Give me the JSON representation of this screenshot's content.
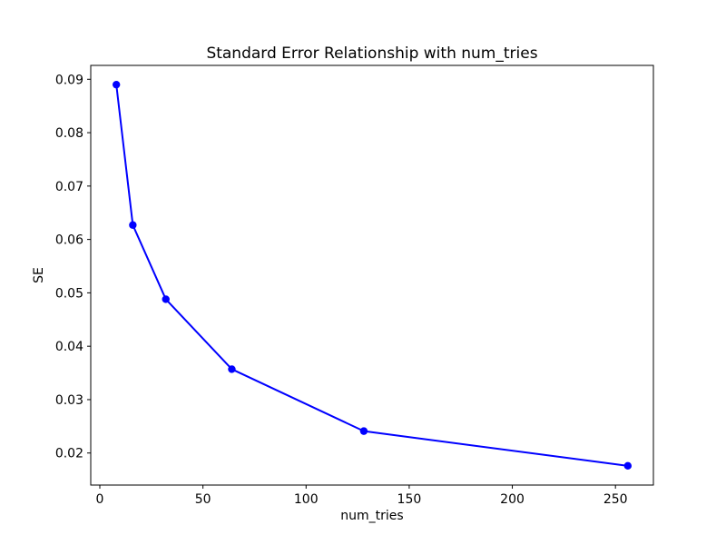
{
  "figure": {
    "background_color": "#ffffff",
    "text_color": "#000000"
  },
  "chart_data": {
    "type": "line",
    "title": "Standard Error Relationship with num_tries",
    "xlabel": "num_tries",
    "ylabel": "SE",
    "series": [
      {
        "x": [
          8,
          16,
          32,
          64,
          128,
          256
        ],
        "y": [
          0.089,
          0.0627,
          0.0488,
          0.0357,
          0.0241,
          0.0176
        ],
        "color": "#0000ff",
        "marker": "circle"
      }
    ],
    "x_ticks": [
      0,
      50,
      100,
      150,
      200,
      250
    ],
    "x_tick_labels": [
      "0",
      "50",
      "100",
      "150",
      "200",
      "250"
    ],
    "y_ticks": [
      0.02,
      0.03,
      0.04,
      0.05,
      0.06,
      0.07,
      0.08,
      0.09
    ],
    "y_tick_labels": [
      "0.02",
      "0.03",
      "0.04",
      "0.05",
      "0.06",
      "0.07",
      "0.08",
      "0.09"
    ],
    "xlim": [
      -4.4,
      268.4
    ],
    "ylim": [
      0.014,
      0.0926
    ],
    "grid": false,
    "legend": false
  }
}
